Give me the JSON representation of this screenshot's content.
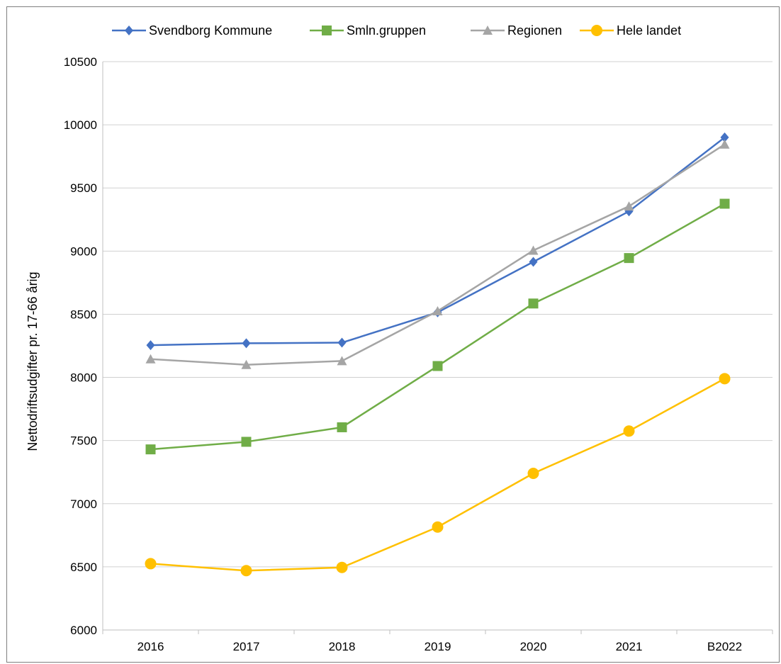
{
  "chart_data": {
    "type": "line",
    "title": "",
    "xlabel": "",
    "ylabel": "Nettodriftsudgifter pr. 17-66 årig",
    "ylim": [
      6000,
      10500
    ],
    "yticks": [
      6000,
      6500,
      7000,
      7500,
      8000,
      8500,
      9000,
      9500,
      10000,
      10500
    ],
    "grid": true,
    "legend_position": "top",
    "categories": [
      "2016",
      "2017",
      "2018",
      "2019",
      "2020",
      "2021",
      "B2022"
    ],
    "series": [
      {
        "name": "Svendborg Kommune",
        "color": "#4472c4",
        "marker": "diamond",
        "values": [
          8255,
          8270,
          8275,
          8515,
          8915,
          9315,
          9900
        ]
      },
      {
        "name": "Smln.gruppen",
        "color": "#70ad47",
        "marker": "square",
        "values": [
          7430,
          7490,
          7605,
          8090,
          8585,
          8945,
          9375
        ]
      },
      {
        "name": "Regionen",
        "color": "#a5a5a5",
        "marker": "triangle",
        "values": [
          8145,
          8100,
          8130,
          8525,
          9005,
          9355,
          9845
        ]
      },
      {
        "name": "Hele landet",
        "color": "#ffc000",
        "marker": "circle",
        "values": [
          6525,
          6470,
          6495,
          6815,
          7240,
          7575,
          7990
        ]
      }
    ]
  }
}
